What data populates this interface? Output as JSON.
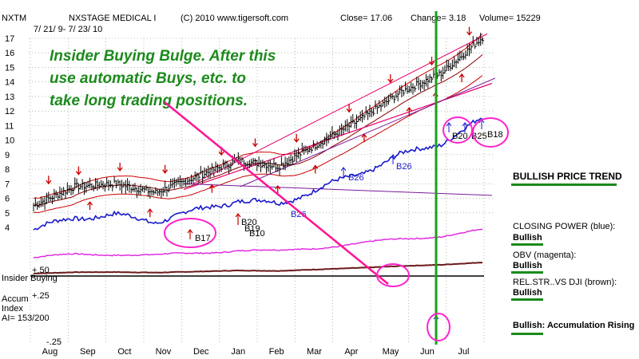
{
  "header": {
    "symbol": "NXTM",
    "company": "NXSTAGE MEDICAL I",
    "copyright": "(C) 2010 www.tigersoft.com",
    "close": "Close= 17.06",
    "change": "Change= 3.18",
    "volume": "Volume= 15229",
    "dates": "7/ 21/ 9- 7/ 23/ 10"
  },
  "annotation": {
    "line1": "Insider Buying Bulge. After this",
    "line2": "use automatic Buys, etc. to",
    "line3": "take long trading positions."
  },
  "indicators": {
    "trend_title": "BULLISH PRICE TREND",
    "closing_power_title": "CLOSING POWER (blue):",
    "closing_power_status": "Bullish",
    "obv_title": "OBV (magenta):",
    "obv_status": "Bullish",
    "relstr_title": "REL.STR..VS DJI (brown):",
    "relstr_status": "Bullish",
    "accum_status": "Bullish: Accumulation Rising"
  },
  "panel_labels": {
    "insider": "Insider Buying",
    "accum1": "Accum",
    "accum2": "Index",
    "ai": "AI= 153/200",
    "plus50": "+.50",
    "plus25": "+.25",
    "minus25": "-.25"
  },
  "signals": [
    {
      "label": "B26",
      "color": "#1a1acc"
    },
    {
      "label": "B26",
      "color": "#1a1acc"
    },
    {
      "label": "B26",
      "color": "#1a1acc"
    },
    {
      "label": "B17",
      "color": "#000000"
    },
    {
      "label": "B20",
      "color": "#000000"
    },
    {
      "label": "B19",
      "color": "#000000"
    },
    {
      "label": "B10",
      "color": "#000000"
    },
    {
      "label": "B20",
      "color": "#000000"
    },
    {
      "label": "B25",
      "color": "#000000"
    },
    {
      "label": "B18",
      "color": "#000000"
    }
  ],
  "colors": {
    "price": "#000000",
    "channel": "#e8006e",
    "bands": "#cc0000",
    "closing_power": "#1a1acc",
    "obv": "#e020e0",
    "rel_strength": "#6b1a1a",
    "accum": "#1a1acc",
    "accum_negative": "#cc0000",
    "annotation_arrow": "#ff1493",
    "marker_line": "#1aa01a",
    "circle": "#ff22cc",
    "status_bar": "#1a8a1a"
  },
  "chart_data": {
    "type": "line",
    "title": "NXSTAGE MEDICAL I",
    "x_months": [
      "Aug",
      "Sep",
      "Oct",
      "Nov",
      "Dec",
      "Jan",
      "Feb",
      "Mar",
      "Apr",
      "May",
      "Jun",
      "Jul"
    ],
    "y_ticks": [
      4,
      5,
      6,
      7,
      8,
      9,
      10,
      11,
      12,
      13,
      14,
      15,
      16,
      17
    ],
    "ylim": [
      4,
      17
    ],
    "accum_ticks": [
      "+.50",
      "+.25",
      "-.25"
    ],
    "close_last": 17.06,
    "series": [
      {
        "name": "Price",
        "x": [
          "Aug",
          "Sep",
          "Oct",
          "Nov",
          "Dec",
          "Jan",
          "Feb",
          "Mar",
          "Apr",
          "May",
          "Jun",
          "Jul"
        ],
        "values": [
          5.5,
          6.8,
          7.0,
          6.4,
          7.5,
          8.6,
          8.2,
          9.8,
          11.4,
          13.3,
          14.6,
          17.06
        ]
      }
    ]
  }
}
